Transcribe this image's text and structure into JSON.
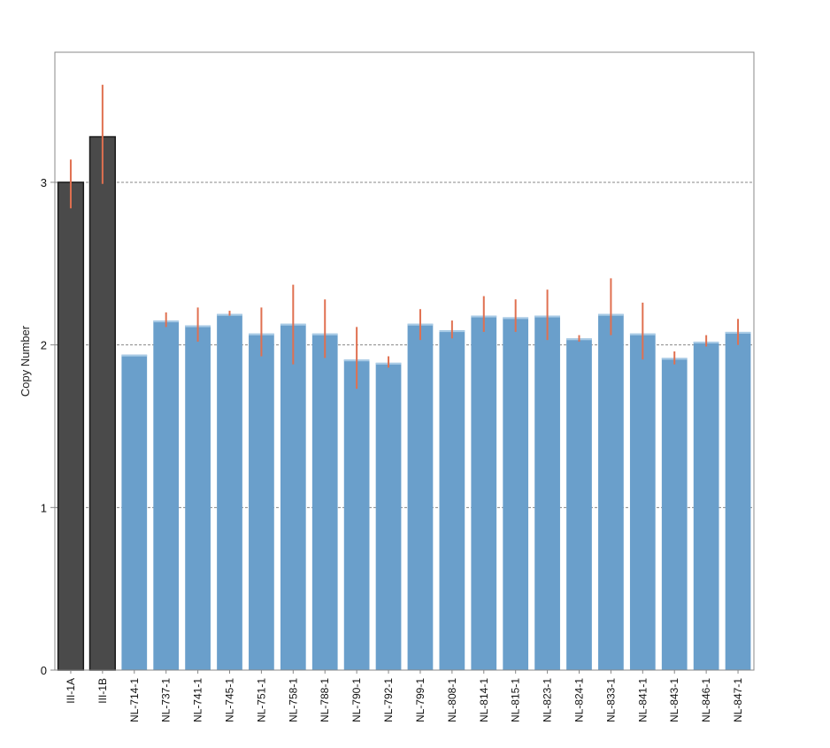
{
  "chart_data": {
    "type": "bar",
    "title": "",
    "xlabel": "",
    "ylabel": "Copy Number",
    "ylim": [
      0,
      3.8
    ],
    "yticks": [
      0,
      1,
      2,
      3
    ],
    "grid": "horizontal dashed at ticks",
    "categories": [
      "III-1A",
      "III-1B",
      "NL-714-1",
      "NL-737-1",
      "NL-741-1",
      "NL-745-1",
      "NL-751-1",
      "NL-758-1",
      "NL-788-1",
      "NL-790-1",
      "NL-792-1",
      "NL-799-1",
      "NL-808-1",
      "NL-814-1",
      "NL-815-1",
      "NL-823-1",
      "NL-824-1",
      "NL-833-1",
      "NL-841-1",
      "NL-843-1",
      "NL-846-1",
      "NL-847-1"
    ],
    "values": [
      3.0,
      3.28,
      1.94,
      2.15,
      2.12,
      2.19,
      2.07,
      2.13,
      2.07,
      1.91,
      1.89,
      2.13,
      2.09,
      2.18,
      2.17,
      2.18,
      2.04,
      2.19,
      2.07,
      1.92,
      2.02,
      2.08
    ],
    "error_low": [
      2.84,
      2.99,
      null,
      2.11,
      2.02,
      2.18,
      1.93,
      1.88,
      1.92,
      1.73,
      1.86,
      2.03,
      2.04,
      2.08,
      2.08,
      2.03,
      2.02,
      2.06,
      1.91,
      1.88,
      1.99,
      2.0
    ],
    "error_high": [
      3.14,
      3.6,
      null,
      2.2,
      2.23,
      2.21,
      2.23,
      2.37,
      2.28,
      2.11,
      1.93,
      2.22,
      2.15,
      2.3,
      2.28,
      2.34,
      2.06,
      2.41,
      2.26,
      1.96,
      2.06,
      2.16
    ],
    "bar_groups": [
      "control",
      "control",
      "sample",
      "sample",
      "sample",
      "sample",
      "sample",
      "sample",
      "sample",
      "sample",
      "sample",
      "sample",
      "sample",
      "sample",
      "sample",
      "sample",
      "sample",
      "sample",
      "sample",
      "sample",
      "sample",
      "sample"
    ],
    "colors": {
      "control": "#4a4a4a",
      "sample": "#6a9fcb",
      "sample_top": "#a9cbe6",
      "error": "#e07050",
      "grid": "#888888",
      "axis": "#888888"
    }
  }
}
